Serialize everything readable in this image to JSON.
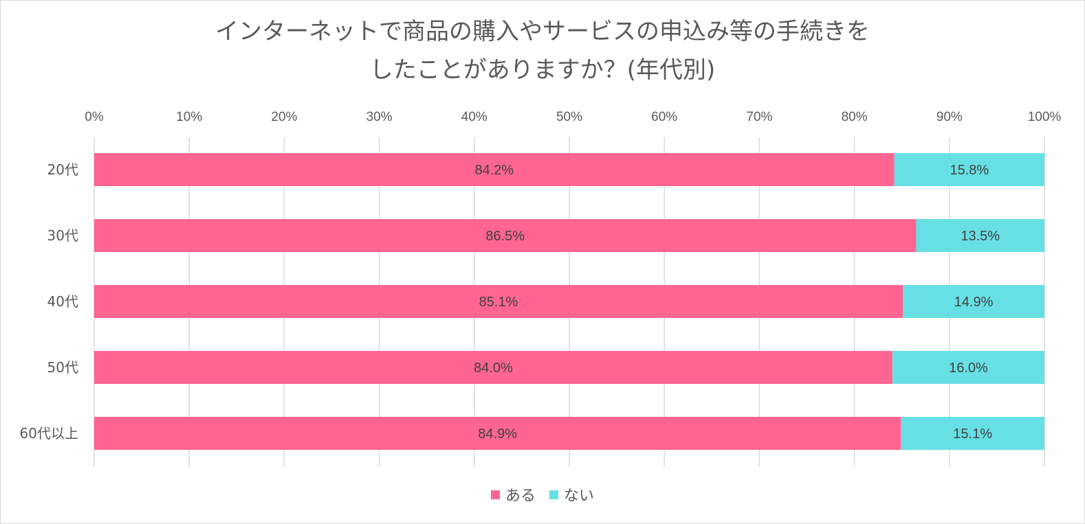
{
  "chart_data": {
    "type": "bar",
    "orientation": "horizontal",
    "stacked": true,
    "title": [
      "インターネットで商品の購入やサービスの申込み等の手続きを",
      "したことがありますか？(年代別)"
    ],
    "categories": [
      "20代",
      "30代",
      "40代",
      "50代",
      "60代以上"
    ],
    "series": [
      {
        "name": "ある",
        "color": "#ff6591",
        "values": [
          84.2,
          86.5,
          85.1,
          84.0,
          84.9
        ],
        "labels": [
          "84.2%",
          "86.5%",
          "85.1%",
          "84.0%",
          "84.9%"
        ]
      },
      {
        "name": "ない",
        "color": "#66e0e5",
        "values": [
          15.8,
          13.5,
          14.9,
          16.0,
          15.1
        ],
        "labels": [
          "15.8%",
          "13.5%",
          "14.9%",
          "16.0%",
          "15.1%"
        ]
      }
    ],
    "xlim": [
      0,
      100
    ],
    "xticks": [
      "0%",
      "10%",
      "20%",
      "30%",
      "40%",
      "50%",
      "60%",
      "70%",
      "80%",
      "90%",
      "100%"
    ],
    "grid": true,
    "legend_position": "bottom",
    "axis_position": "top"
  }
}
